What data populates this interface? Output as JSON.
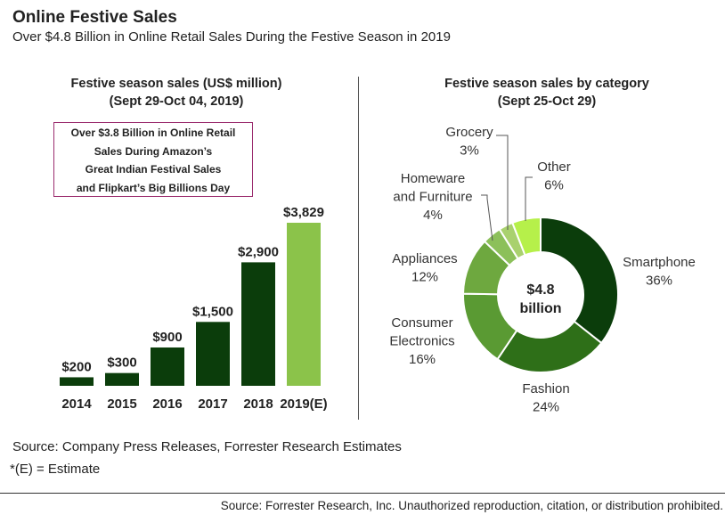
{
  "header": {
    "title": "Online Festive Sales",
    "subtitle": "Over $4.8 Billion in Online Retail Sales During the Festive Season in 2019"
  },
  "colors": {
    "dark_green": "#0b3d0b",
    "light_green": "#8bc34a",
    "callout_border": "#9b2c6e"
  },
  "bar_panel": {
    "title_line1": "Festive season sales (US$ million)",
    "title_line2": "(Sept 29-Oct 04, 2019)",
    "callout_lines": [
      "Over $3.8 Billion in Online Retail",
      "Sales During Amazon’s",
      "Great Indian Festival Sales",
      "and Flipkart’s Big Billions Day"
    ]
  },
  "donut_panel": {
    "title_line1": "Festive season sales by category",
    "title_line2": "(Sept 25-Oct 29)",
    "center_line1": "$4.8",
    "center_line2": "billion"
  },
  "chart_data": [
    {
      "type": "bar",
      "title": "Festive season sales (US$ million)",
      "subtitle": "(Sept 29-Oct 04, 2019)",
      "categories": [
        "2014",
        "2015",
        "2016",
        "2017",
        "2018",
        "2019(E)"
      ],
      "values": [
        200,
        300,
        900,
        1500,
        2900,
        3829
      ],
      "value_labels": [
        "$200",
        "$300",
        "$900",
        "$1,500",
        "$2,900",
        "$3,829"
      ],
      "bar_colors": [
        "#0b3d0b",
        "#0b3d0b",
        "#0b3d0b",
        "#0b3d0b",
        "#0b3d0b",
        "#8bc34a"
      ],
      "ylim": [
        0,
        3829
      ],
      "grid": false,
      "xlabel": "",
      "ylabel": ""
    },
    {
      "type": "pie",
      "title": "Festive season sales by category",
      "subtitle": "(Sept 25-Oct 29)",
      "donut": true,
      "center_label": "$4.8 billion",
      "slices": [
        {
          "label": "Smartphone",
          "value": 36,
          "pct_label": "36%",
          "color": "#0b3d0b"
        },
        {
          "label": "Fashion",
          "value": 24,
          "pct_label": "24%",
          "color": "#2e6f18"
        },
        {
          "label": "Consumer Electronics",
          "label_lines": [
            "Consumer",
            "Electronics"
          ],
          "value": 16,
          "pct_label": "16%",
          "color": "#5a9a33"
        },
        {
          "label": "Appliances",
          "value": 12,
          "pct_label": "12%",
          "color": "#6ea83f"
        },
        {
          "label": "Homeware and Furniture",
          "label_lines": [
            "Homeware",
            "and Furniture"
          ],
          "value": 4,
          "pct_label": "4%",
          "color": "#8cc05a"
        },
        {
          "label": "Grocery",
          "value": 3,
          "pct_label": "3%",
          "color": "#a9d16e"
        },
        {
          "label": "Other",
          "value": 6,
          "pct_label": "6%",
          "color": "#b6f04a"
        }
      ]
    }
  ],
  "footnotes": {
    "source": "Source: Company Press Releases, Forrester Research Estimates",
    "estimate_note": "*(E) = Estimate",
    "copyright": "Source: Forrester Research, Inc. Unauthorized reproduction, citation, or distribution prohibited."
  }
}
